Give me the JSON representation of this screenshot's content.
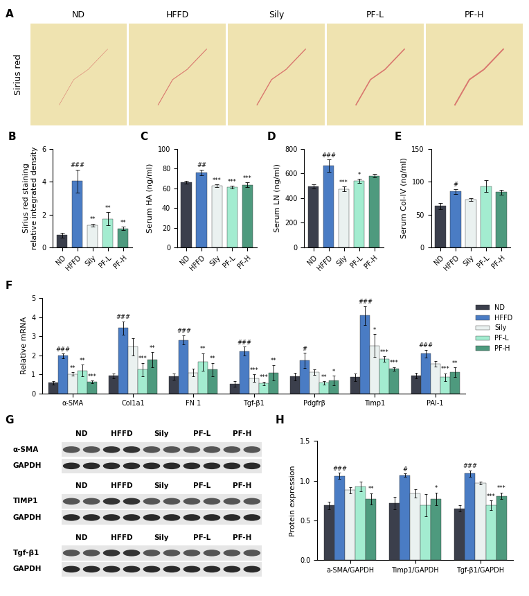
{
  "chart_data": [
    {
      "panel": "B",
      "type": "bar",
      "categories": [
        "ND",
        "HFFD",
        "Sily",
        "PF-L",
        "PF-H"
      ],
      "values": [
        0.75,
        4.05,
        1.35,
        1.75,
        1.15
      ],
      "errors": [
        0.15,
        0.7,
        0.1,
        0.4,
        0.1
      ],
      "annotations": [
        null,
        "###",
        "**",
        "**",
        "**"
      ],
      "colors": [
        "#3b3f4c",
        "#4a7cc4",
        "#eaf1f0",
        "#a3ecd0",
        "#4e9a7e"
      ],
      "y_label": "Sirius red staining\nrelative integrated density",
      "ylim": [
        0,
        6
      ],
      "yticks": [
        0,
        2,
        4,
        6
      ]
    },
    {
      "panel": "C",
      "type": "bar",
      "categories": [
        "ND",
        "HFFD",
        "Sily",
        "PF-L",
        "PF-H"
      ],
      "values": [
        66,
        76,
        62.5,
        61,
        63.5
      ],
      "errors": [
        1.5,
        3,
        1.5,
        1.5,
        2.5
      ],
      "annotations": [
        null,
        "##",
        "***",
        "***",
        "***"
      ],
      "colors": [
        "#3b3f4c",
        "#4a7cc4",
        "#eaf1f0",
        "#a3ecd0",
        "#4e9a7e"
      ],
      "y_label": "Serum HA (ng/ml)",
      "ylim": [
        0,
        100
      ],
      "yticks": [
        0,
        20,
        40,
        60,
        80,
        100
      ]
    },
    {
      "panel": "D",
      "type": "bar",
      "categories": [
        "ND",
        "HFFD",
        "Sily",
        "PF-L",
        "PF-H"
      ],
      "values": [
        495,
        665,
        475,
        540,
        582
      ],
      "errors": [
        18,
        50,
        20,
        15,
        15
      ],
      "annotations": [
        null,
        "###",
        "***",
        "*",
        null
      ],
      "colors": [
        "#3b3f4c",
        "#4a7cc4",
        "#eaf1f0",
        "#a3ecd0",
        "#4e9a7e"
      ],
      "y_label": "Serum LN (ng/ml)",
      "ylim": [
        0,
        800
      ],
      "yticks": [
        0,
        200,
        400,
        600,
        800
      ]
    },
    {
      "panel": "E",
      "type": "bar",
      "categories": [
        "ND",
        "HFFD",
        "Sily",
        "PF-L",
        "PF-H"
      ],
      "values": [
        63,
        85,
        73,
        93,
        84
      ],
      "errors": [
        5,
        4,
        2,
        9,
        4
      ],
      "annotations": [
        null,
        "#",
        null,
        null,
        null
      ],
      "colors": [
        "#3b3f4c",
        "#4a7cc4",
        "#eaf1f0",
        "#a3ecd0",
        "#4e9a7e"
      ],
      "y_label": "Serum Col-IV (ng/ml)",
      "ylim": [
        0,
        150
      ],
      "yticks": [
        0,
        50,
        100,
        150
      ]
    },
    {
      "panel": "F",
      "type": "bar",
      "legend": "right",
      "categories": [
        "α-SMA",
        "Col1a1",
        "FN 1",
        "Tgf-β1",
        "Pdgfrβ",
        "Timp1",
        "PAI-1"
      ],
      "y_label": "Relative mRNA",
      "ylim": [
        0,
        5
      ],
      "yticks": [
        0,
        1,
        2,
        3,
        4,
        5
      ],
      "series": [
        {
          "name": "ND",
          "color": "#3b3f4c",
          "values": [
            0.55,
            0.92,
            0.88,
            0.5,
            0.88,
            0.85,
            0.92
          ],
          "errors": [
            0.1,
            0.12,
            0.15,
            0.15,
            0.2,
            0.2,
            0.15
          ],
          "annotations": [
            null,
            null,
            null,
            null,
            null,
            null,
            null
          ]
        },
        {
          "name": "HFFD",
          "color": "#4a7cc4",
          "values": [
            1.97,
            3.42,
            2.8,
            2.22,
            1.72,
            4.08,
            2.08
          ],
          "errors": [
            0.12,
            0.35,
            0.25,
            0.22,
            0.4,
            0.5,
            0.2
          ],
          "annotations": [
            "###",
            "###",
            "###",
            "###",
            "#",
            "###",
            "###"
          ]
        },
        {
          "name": "Sily",
          "color": "#eaf1f0",
          "values": [
            1.02,
            2.45,
            1.08,
            0.8,
            1.12,
            2.5,
            1.55
          ],
          "errors": [
            0.08,
            0.45,
            0.2,
            0.2,
            0.15,
            0.6,
            0.15
          ],
          "annotations": [
            "**",
            null,
            null,
            "***",
            null,
            "*",
            null
          ]
        },
        {
          "name": "PF-L",
          "color": "#a3ecd0",
          "values": [
            1.2,
            1.25,
            1.65,
            0.52,
            0.55,
            1.8,
            0.85
          ],
          "errors": [
            0.3,
            0.35,
            0.45,
            0.1,
            0.08,
            0.15,
            0.2
          ],
          "annotations": [
            "**",
            "***",
            "**",
            "***",
            "**",
            "***",
            "***"
          ]
        },
        {
          "name": "PF-H",
          "color": "#4e9a7e",
          "values": [
            0.6,
            1.75,
            1.25,
            1.08,
            0.68,
            1.28,
            1.12
          ],
          "errors": [
            0.08,
            0.4,
            0.35,
            0.4,
            0.25,
            0.1,
            0.25
          ],
          "annotations": [
            "***",
            "**",
            "**",
            "**",
            "*",
            "***",
            "**"
          ]
        }
      ]
    },
    {
      "panel": "H",
      "type": "bar",
      "categories": [
        "a-SMA/GAPDH",
        "Timp1/GAPDH",
        "Tgf-β1/GAPDH"
      ],
      "y_label": "Protein expression",
      "ylim": [
        0,
        1.5
      ],
      "yticks": [
        {
          "value": 0,
          "label": "0.0"
        },
        {
          "value": 0.5,
          "label": "0.5"
        },
        {
          "value": 1,
          "label": "1.0"
        },
        {
          "value": 1.5,
          "label": "1.5"
        }
      ],
      "series": [
        {
          "name": "ND",
          "color": "#3b3f4c",
          "values": [
            0.69,
            0.72,
            0.65
          ],
          "errors": [
            0.05,
            0.08,
            0.04
          ],
          "annotations": [
            null,
            null,
            null
          ]
        },
        {
          "name": "HFFD",
          "color": "#4a7cc4",
          "values": [
            1.06,
            1.07,
            1.09
          ],
          "errors": [
            0.04,
            0.02,
            0.04
          ],
          "annotations": [
            "###",
            "#",
            "###"
          ]
        },
        {
          "name": "Sily",
          "color": "#eaf1f0",
          "values": [
            0.88,
            0.84,
            0.97
          ],
          "errors": [
            0.04,
            0.05,
            0.02
          ],
          "annotations": [
            null,
            null,
            null
          ]
        },
        {
          "name": "PF-L",
          "color": "#a3ecd0",
          "values": [
            0.93,
            0.69,
            0.69
          ],
          "errors": [
            0.06,
            0.14,
            0.06
          ],
          "annotations": [
            null,
            null,
            "***"
          ]
        },
        {
          "name": "PF-H",
          "color": "#4e9a7e",
          "values": [
            0.77,
            0.77,
            0.81
          ],
          "errors": [
            0.07,
            0.08,
            0.04
          ],
          "annotations": [
            "**",
            "*",
            "***"
          ]
        }
      ]
    }
  ],
  "images": [
    {
      "panel": "A",
      "label": "Sirius red",
      "groups": [
        "ND",
        "HFFD",
        "Sily",
        "PF-L",
        "PF-H"
      ]
    },
    {
      "panel": "G",
      "groups": [
        "ND",
        "HFFD",
        "Sily",
        "PF-L",
        "PF-H"
      ],
      "blots": [
        {
          "protein": "α-SMA",
          "control": "GAPDH"
        },
        {
          "protein": "TIMP1",
          "control": "GAPDH"
        },
        {
          "protein": "Tgf-β1",
          "control": "GAPDH"
        }
      ]
    }
  ]
}
